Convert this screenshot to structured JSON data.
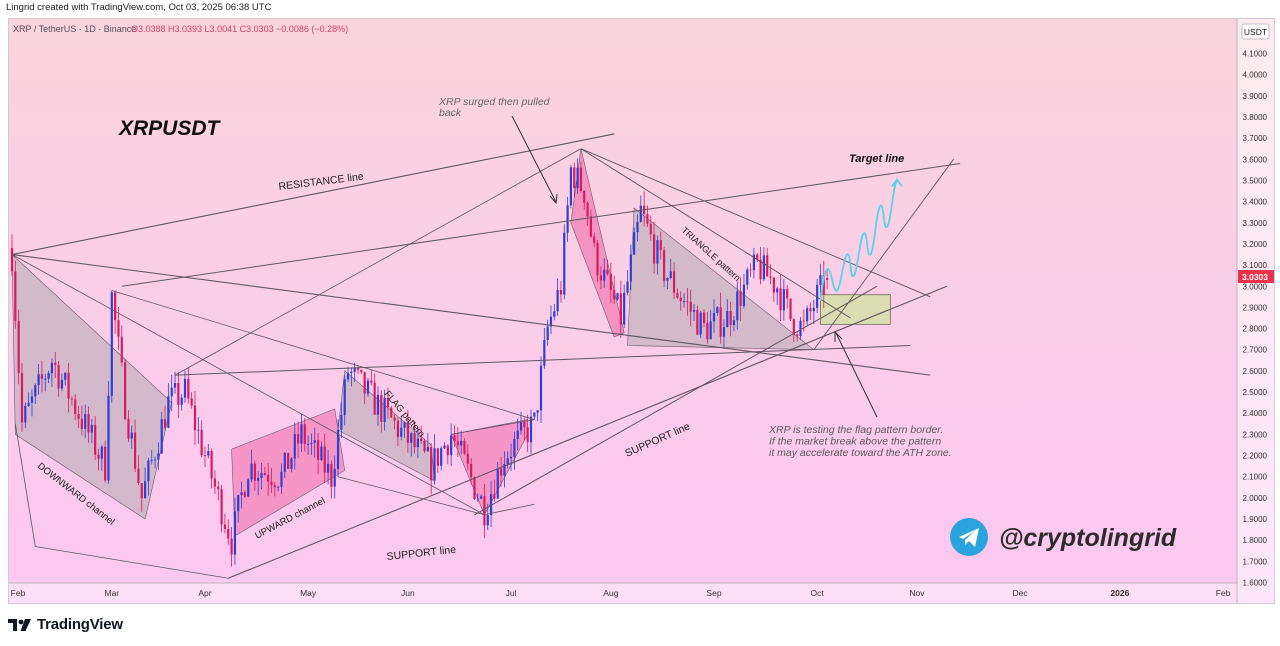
{
  "header": {
    "created_by": "Lingrid created with TradingView.com, Oct 03, 2025 06:38 UTC"
  },
  "legend": {
    "symbol": "XRP / TetherUS · 1D · Binance",
    "ohlc": "O3.0388 H3.0393 L3.0041 C3.0303 −0.0086 (−0.28%)"
  },
  "chart_title": "XRPUSDT",
  "currency": "USDT",
  "last_price_label": "3.0303",
  "colors": {
    "up": "#2f3fd3",
    "down": "#d81b60",
    "bg_top": "#fad3df",
    "bg_bottom": "#fbc8f0",
    "price_badge": "#e8334a",
    "pattern_fill": "#f06ba8",
    "channel_fill": "#b3aab0"
  },
  "annotations": {
    "resistance": "RESISTANCE line",
    "support_top": "SUPPORT line",
    "support_bottom": "SUPPORT line",
    "downward": "DOWNWARD channel",
    "upward": "UPWARD channel",
    "flag": "FLAG pattern",
    "triangle": "TRIANGLE pattern",
    "target": "Target line",
    "surge_1": "XRP surged then pulled",
    "surge_2": "back",
    "note_1": "XRP is testing the flag pattern border.",
    "note_2": "If the market break above the pattern",
    "note_3": "it may accelerate toward the ATH zone."
  },
  "watermark": {
    "handle": "@cryptolingrid"
  },
  "footer": {
    "brand": "TradingView"
  },
  "chart_data": {
    "type": "candlestick",
    "title": "XRPUSDT",
    "x_ticks": [
      "Feb",
      "Mar",
      "Apr",
      "May",
      "Jun",
      "Jul",
      "Aug",
      "Sep",
      "Oct",
      "Nov",
      "Dec",
      "2026",
      "Feb"
    ],
    "y_ticks": [
      "4.1000",
      "4.0000",
      "3.9000",
      "3.8000",
      "3.7000",
      "3.6000",
      "3.5000",
      "3.4000",
      "3.3000",
      "3.2000",
      "3.1000",
      "3.0000",
      "2.9000",
      "2.8000",
      "2.7000",
      "2.6000",
      "2.5000",
      "2.4000",
      "2.3000",
      "2.2000",
      "2.1000",
      "2.0000",
      "1.9000",
      "1.8000",
      "1.7000",
      "1.6000"
    ],
    "ylim": [
      1.6,
      4.1
    ],
    "anchors": [
      {
        "date": "2025-01-31",
        "close": 3.15
      },
      {
        "date": "2025-02-03",
        "close": 2.35
      },
      {
        "date": "2025-02-12",
        "close": 2.65
      },
      {
        "date": "2025-02-28",
        "close": 2.15
      },
      {
        "date": "2025-03-02",
        "close": 2.95
      },
      {
        "date": "2025-03-06",
        "close": 2.45
      },
      {
        "date": "2025-03-11",
        "close": 2.0
      },
      {
        "date": "2025-03-19",
        "close": 2.45
      },
      {
        "date": "2025-03-24",
        "close": 2.5
      },
      {
        "date": "2025-04-01",
        "close": 2.1
      },
      {
        "date": "2025-04-07",
        "close": 1.8
      },
      {
        "date": "2025-04-12",
        "close": 2.15
      },
      {
        "date": "2025-04-22",
        "close": 2.1
      },
      {
        "date": "2025-04-28",
        "close": 2.3
      },
      {
        "date": "2025-05-07",
        "close": 2.1
      },
      {
        "date": "2025-05-12",
        "close": 2.6
      },
      {
        "date": "2025-05-23",
        "close": 2.4
      },
      {
        "date": "2025-06-06",
        "close": 2.15
      },
      {
        "date": "2025-06-12",
        "close": 2.3
      },
      {
        "date": "2025-06-22",
        "close": 1.95
      },
      {
        "date": "2025-06-28",
        "close": 2.2
      },
      {
        "date": "2025-07-07",
        "close": 2.35
      },
      {
        "date": "2025-07-11",
        "close": 2.8
      },
      {
        "date": "2025-07-15",
        "close": 3.0
      },
      {
        "date": "2025-07-18",
        "close": 3.55
      },
      {
        "date": "2025-07-22",
        "close": 3.45
      },
      {
        "date": "2025-07-25",
        "close": 3.15
      },
      {
        "date": "2025-08-02",
        "close": 2.85
      },
      {
        "date": "2025-08-08",
        "close": 3.35
      },
      {
        "date": "2025-08-14",
        "close": 3.1
      },
      {
        "date": "2025-08-20",
        "close": 2.95
      },
      {
        "date": "2025-08-27",
        "close": 2.8
      },
      {
        "date": "2025-09-03",
        "close": 2.85
      },
      {
        "date": "2025-09-12",
        "close": 3.1
      },
      {
        "date": "2025-09-18",
        "close": 3.0
      },
      {
        "date": "2025-09-22",
        "close": 2.85
      },
      {
        "date": "2025-09-26",
        "close": 2.8
      },
      {
        "date": "2025-09-30",
        "close": 2.95
      },
      {
        "date": "2025-10-03",
        "close": 3.03
      }
    ],
    "drawings": {
      "resistance_line": [
        [
          "2025-01-31",
          3.15
        ],
        [
          "2025-07-31",
          3.72
        ]
      ],
      "support_line_lower": [
        [
          "2025-04-06",
          1.62
        ],
        [
          "2025-11-08",
          3.0
        ]
      ],
      "support_line_mid": [
        [
          "2025-06-19",
          1.92
        ],
        [
          "2025-10-18",
          3.0
        ]
      ],
      "target_line": [
        [
          "2025-03-05",
          3.0
        ],
        [
          "2025-11-12",
          3.58
        ]
      ],
      "flag_upper": [
        [
          "2025-01-31",
          3.15
        ],
        [
          "2025-11-03",
          2.58
        ]
      ],
      "horizontal_support": [
        [
          "2025-03-21",
          2.58
        ],
        [
          "2025-10-28",
          2.72
        ]
      ],
      "breakout_box": {
        "from": "2025-10-01",
        "to": "2025-10-22",
        "low": 2.82,
        "high": 2.96
      }
    }
  }
}
